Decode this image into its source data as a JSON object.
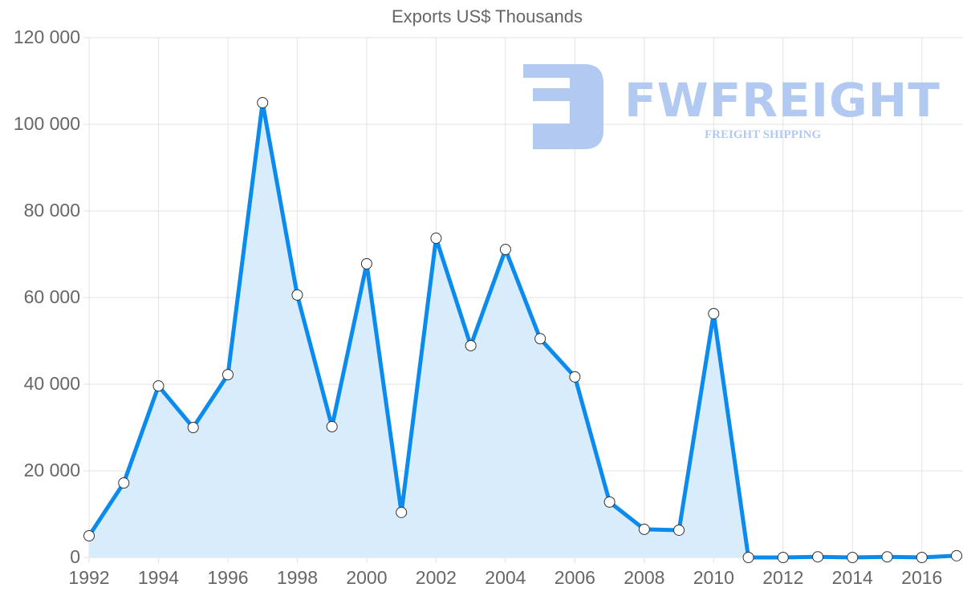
{
  "chart_data": {
    "type": "line",
    "title": "Exports US$ Thousands",
    "xlabel": "",
    "ylabel": "",
    "ylim": [
      0,
      120000
    ],
    "grid": true,
    "legend": "none",
    "fill": true,
    "x": [
      1992,
      1993,
      1994,
      1995,
      1996,
      1997,
      1998,
      1999,
      2000,
      2001,
      2002,
      2003,
      2004,
      2005,
      2006,
      2007,
      2008,
      2009,
      2010,
      2011,
      2012,
      2013,
      2014,
      2015,
      2016,
      2017
    ],
    "series": [
      {
        "name": "Exports",
        "values": [
          5000,
          17200,
          39600,
          30000,
          42200,
          105000,
          60600,
          30200,
          67800,
          10400,
          73700,
          48900,
          71100,
          50500,
          41700,
          12800,
          6500,
          6300,
          56300,
          0,
          0,
          150,
          0,
          150,
          0,
          400
        ]
      }
    ],
    "y_ticks": [
      "0",
      "20 000",
      "40 000",
      "60 000",
      "80 000",
      "100 000",
      "120 000"
    ],
    "x_ticks": [
      "1992",
      "1994",
      "1996",
      "1998",
      "2000",
      "2002",
      "2004",
      "2006",
      "2008",
      "2010",
      "2012",
      "2014",
      "2016"
    ],
    "colors": {
      "line": "#0a8bed",
      "fill": "#d8ecfc",
      "grid": "#e2e2e2",
      "text": "#666666"
    }
  },
  "watermark": {
    "brand": "FWFREIGHT",
    "tagline": "FREIGHT SHIPPING",
    "color": "#b2c9f2"
  }
}
